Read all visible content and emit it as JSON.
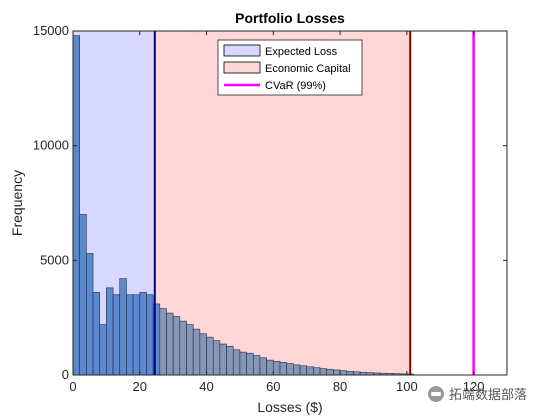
{
  "chart_data": {
    "type": "histogram",
    "title": "Portfolio Losses",
    "xlabel": "Losses ($)",
    "ylabel": "Frequency",
    "xlim": [
      0,
      130
    ],
    "ylim": [
      0,
      15000
    ],
    "xticks": [
      "0",
      "20",
      "40",
      "60",
      "80",
      "100",
      "120"
    ],
    "yticks": [
      "0",
      "5000",
      "10000",
      "15000"
    ],
    "bin_width": 2,
    "bins_start": [
      0,
      2,
      4,
      6,
      8,
      10,
      12,
      14,
      16,
      18,
      20,
      22,
      24,
      26,
      28,
      30,
      32,
      34,
      36,
      38,
      40,
      42,
      44,
      46,
      48,
      50,
      52,
      54,
      56,
      58,
      60,
      62,
      64,
      66,
      68,
      70,
      72,
      74,
      76,
      78,
      80,
      82,
      84,
      86,
      88,
      90,
      92,
      94,
      96,
      98,
      100
    ],
    "counts": [
      14800,
      7000,
      5300,
      3600,
      2200,
      3800,
      3500,
      4200,
      3500,
      3500,
      3600,
      3500,
      3100,
      2900,
      2700,
      2550,
      2350,
      2200,
      2000,
      1800,
      1650,
      1500,
      1350,
      1250,
      1100,
      1000,
      950,
      850,
      750,
      650,
      600,
      550,
      500,
      440,
      400,
      360,
      320,
      280,
      250,
      220,
      190,
      160,
      140,
      120,
      100,
      90,
      80,
      70,
      60,
      50,
      45
    ],
    "regions": [
      {
        "name": "Expected Loss",
        "x_start": 0,
        "x_end": 24.5,
        "color": "#d7d7ff"
      },
      {
        "name": "Economic Capital",
        "x_start": 24.5,
        "x_end": 101,
        "color": "#ffd7d7"
      }
    ],
    "vertical_lines": [
      {
        "x": 24.5,
        "color": "#00008b"
      },
      {
        "x": 101,
        "color": "#8b0000"
      },
      {
        "name": "CVaR (99%)",
        "x": 120,
        "color": "#ff00ff"
      }
    ],
    "colors": {
      "bars_left": "#4f7fc8",
      "bars_right": "#7b8fb3",
      "bar_edge": "#1f2f4f",
      "axis": "#262626"
    },
    "legend": {
      "position": "top-center",
      "entries": [
        "Expected Loss",
        "Economic Capital",
        "CVaR (99%)"
      ]
    }
  },
  "watermark": {
    "text": "拓端数据部落"
  }
}
